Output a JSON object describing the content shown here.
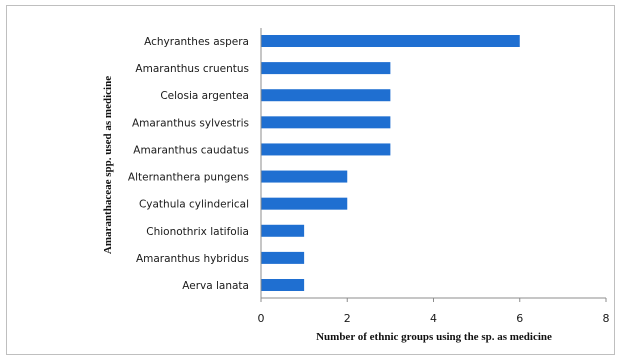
{
  "chart_data": {
    "type": "bar",
    "orientation": "horizontal",
    "title": "",
    "xlabel": "Number of ethnic groups using the sp. as medicine",
    "ylabel": "Amaranthaceae spp. used as medicine",
    "categories": [
      "Achyranthes aspera",
      "Amaranthus cruentus",
      "Celosia argentea",
      "Amaranthus sylvestris",
      "Amaranthus caudatus",
      "Alternanthera pungens",
      "Cyathula cylinderical",
      "Chionothrix latifolia",
      "Amaranthus hybridus",
      "Aerva lanata"
    ],
    "values": [
      6,
      3,
      3,
      3,
      3,
      2,
      2,
      1,
      1,
      1
    ],
    "xlim": [
      0,
      8
    ],
    "xticks": [
      "0",
      "2",
      "4",
      "6",
      "8"
    ],
    "grid": false,
    "legend": "none",
    "bar_color": "#1f6fd1"
  }
}
